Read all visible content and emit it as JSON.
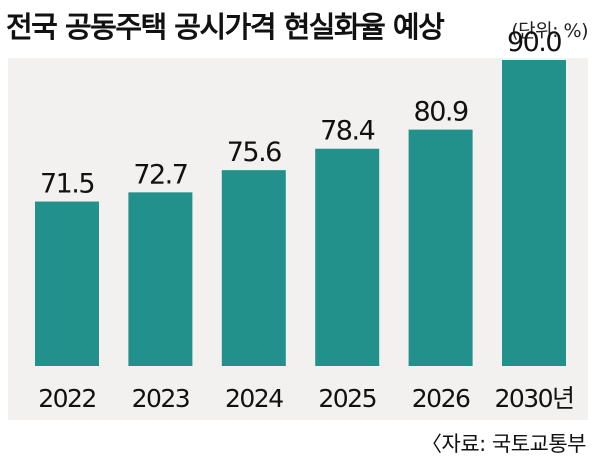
{
  "header": {
    "title": "전국 공동주택 공시가격 현실화율 예상",
    "unit": "(단위: %)"
  },
  "footer": {
    "source": "〈자료: 국토교통부"
  },
  "colors": {
    "bar": "#22918b",
    "background": "#f3f1ef"
  },
  "chart_data": {
    "type": "bar",
    "categories": [
      "2022",
      "2023",
      "2024",
      "2025",
      "2026",
      "2030년"
    ],
    "values": [
      71.5,
      72.7,
      75.6,
      78.4,
      80.9,
      90.0
    ],
    "value_labels": [
      "71.5",
      "72.7",
      "75.6",
      "78.4",
      "80.9",
      "90.0"
    ],
    "title": "전국 공동주택 공시가격 현실화율 예상",
    "unit": "(단위: %)",
    "ylim": [
      50,
      95
    ],
    "grid": false,
    "legend": "none"
  }
}
